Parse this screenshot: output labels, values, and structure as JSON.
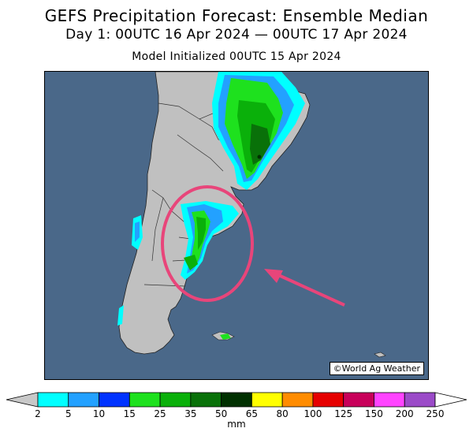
{
  "header": {
    "title": "GEFS Precipitation Forecast: Ensemble Median",
    "period": "Day 1: 00UTC 16 Apr 2024 — 00UTC 17 Apr 2024",
    "init": "Model Initialized 00UTC 15 Apr 2024"
  },
  "map": {
    "credit": "©World Ag Weather",
    "colors": {
      "ocean": "#4a6889",
      "land": "#c0c0c0",
      "border": "#333333",
      "highlight_circle": "#e8457a",
      "arrow": "#e8457a"
    }
  },
  "legend": {
    "unit": "mm",
    "ticks": [
      "2",
      "5",
      "10",
      "15",
      "25",
      "35",
      "50",
      "65",
      "80",
      "100",
      "125",
      "150",
      "200",
      "250"
    ],
    "colors": [
      "#00ffff",
      "#23a1ff",
      "#0033ff",
      "#1ee11e",
      "#0ab00a",
      "#097109",
      "#003000",
      "#ffff00",
      "#ff8c00",
      "#e60000",
      "#c8005a",
      "#ff44ff",
      "#9b4bc8"
    ]
  }
}
